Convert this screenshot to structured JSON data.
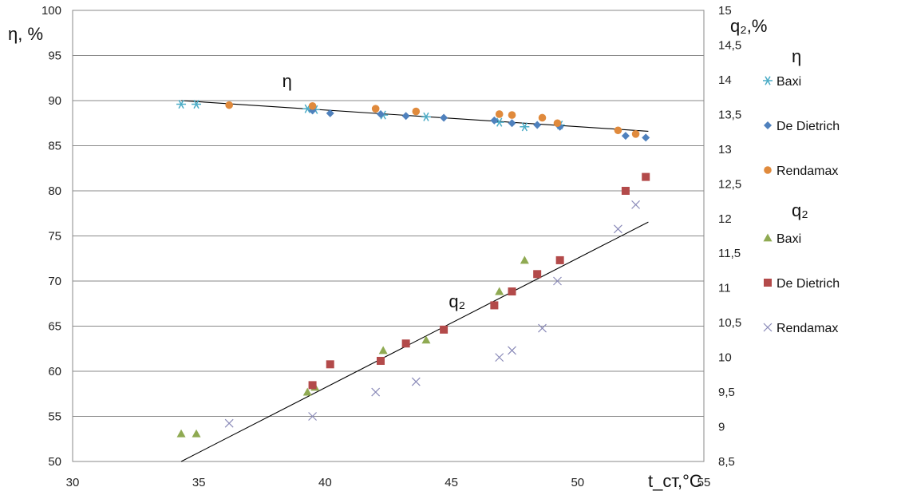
{
  "chart_data": {
    "type": "scatter",
    "title": "",
    "xlabel": "t_ст,°C",
    "ylabel_left": "η, %",
    "ylabel_right": "q₂,%",
    "xlim": [
      30,
      55
    ],
    "xticks": [
      30,
      35,
      40,
      45,
      50,
      55
    ],
    "ylim_left": [
      50,
      100
    ],
    "yticks_left": [
      50,
      55,
      60,
      65,
      70,
      75,
      80,
      85,
      90,
      95,
      100
    ],
    "ylim_right": [
      8.5,
      15
    ],
    "yticks_right": [
      8.5,
      9,
      9.5,
      10,
      10.5,
      11,
      11.5,
      12,
      12.5,
      13,
      13.5,
      14,
      14.5,
      15
    ],
    "ytick_labels_right": [
      "8,5",
      "9",
      "9,5",
      "10",
      "10,5",
      "11",
      "11,5",
      "12",
      "12,5",
      "13",
      "13,5",
      "14",
      "14,5",
      "15"
    ],
    "grid": true,
    "legend_position": "right",
    "legend_groups": [
      {
        "heading": "η",
        "entries": [
          "Baxi",
          "De Dietrich",
          "Rendamax"
        ]
      },
      {
        "heading": "q₂",
        "entries": [
          "Baxi",
          "De Dietrich",
          "Rendamax"
        ]
      }
    ],
    "annotations": [
      {
        "text": "η",
        "x": 38.3,
        "y_left": 91.5
      },
      {
        "text": "q₂",
        "x": 44.9,
        "y_left": 67.1
      }
    ],
    "series": [
      {
        "name": "Baxi",
        "group": "η",
        "axis": "left",
        "marker": "asterisk",
        "color": "#4bacc6",
        "points": [
          [
            34.3,
            89.6
          ],
          [
            34.9,
            89.6
          ],
          [
            39.3,
            89.1
          ],
          [
            39.6,
            89.0
          ],
          [
            42.3,
            88.4
          ],
          [
            44.0,
            88.2
          ],
          [
            46.9,
            87.6
          ],
          [
            47.9,
            87.1
          ],
          [
            49.3,
            87.3
          ]
        ]
      },
      {
        "name": "De Dietrich",
        "group": "η",
        "axis": "left",
        "marker": "diamond",
        "color": "#4f81bd",
        "points": [
          [
            39.5,
            88.9
          ],
          [
            40.2,
            88.6
          ],
          [
            42.2,
            88.5
          ],
          [
            43.2,
            88.3
          ],
          [
            44.7,
            88.1
          ],
          [
            46.7,
            87.8
          ],
          [
            47.4,
            87.5
          ],
          [
            48.4,
            87.3
          ],
          [
            49.3,
            87.1
          ],
          [
            51.9,
            86.1
          ],
          [
            52.7,
            85.9
          ]
        ]
      },
      {
        "name": "Rendamax",
        "group": "η",
        "axis": "left",
        "marker": "circle",
        "color": "#e08a3c",
        "points": [
          [
            36.2,
            89.5
          ],
          [
            39.5,
            89.4
          ],
          [
            42.0,
            89.1
          ],
          [
            43.6,
            88.8
          ],
          [
            46.9,
            88.5
          ],
          [
            47.4,
            88.4
          ],
          [
            48.6,
            88.1
          ],
          [
            49.2,
            87.5
          ],
          [
            51.6,
            86.7
          ],
          [
            52.3,
            86.3
          ]
        ]
      },
      {
        "name": "Baxi",
        "group": "q₂",
        "axis": "right",
        "marker": "triangle",
        "color": "#8faa52",
        "points": [
          [
            34.3,
            8.9
          ],
          [
            34.9,
            8.9
          ],
          [
            39.3,
            9.5
          ],
          [
            39.6,
            9.57
          ],
          [
            42.3,
            10.1
          ],
          [
            44.0,
            10.25
          ],
          [
            46.9,
            10.95
          ],
          [
            47.9,
            11.4
          ]
        ]
      },
      {
        "name": "De Dietrich",
        "group": "q₂",
        "axis": "right",
        "marker": "square",
        "color": "#b34a4a",
        "points": [
          [
            39.5,
            9.6
          ],
          [
            40.2,
            9.9
          ],
          [
            42.2,
            9.95
          ],
          [
            43.2,
            10.2
          ],
          [
            44.7,
            10.4
          ],
          [
            46.7,
            10.75
          ],
          [
            47.4,
            10.95
          ],
          [
            48.4,
            11.2
          ],
          [
            49.3,
            11.4
          ],
          [
            51.9,
            12.4
          ],
          [
            52.7,
            12.6
          ]
        ]
      },
      {
        "name": "Rendamax",
        "group": "q₂",
        "axis": "right",
        "marker": "x",
        "color": "#8a8ab8",
        "points": [
          [
            36.2,
            9.05
          ],
          [
            39.5,
            9.15
          ],
          [
            42.0,
            9.5
          ],
          [
            43.6,
            9.65
          ],
          [
            46.9,
            10.0
          ],
          [
            47.4,
            10.1
          ],
          [
            48.6,
            10.42
          ],
          [
            49.2,
            11.1
          ],
          [
            51.6,
            11.85
          ],
          [
            52.3,
            12.2
          ]
        ]
      }
    ],
    "trendlines": [
      {
        "group": "η",
        "axis": "left",
        "x": [
          34.3,
          52.8
        ],
        "y": [
          90.0,
          86.6
        ]
      },
      {
        "group": "q₂",
        "axis": "right",
        "x": [
          34.3,
          52.8
        ],
        "y": [
          8.5,
          11.95
        ]
      }
    ]
  }
}
